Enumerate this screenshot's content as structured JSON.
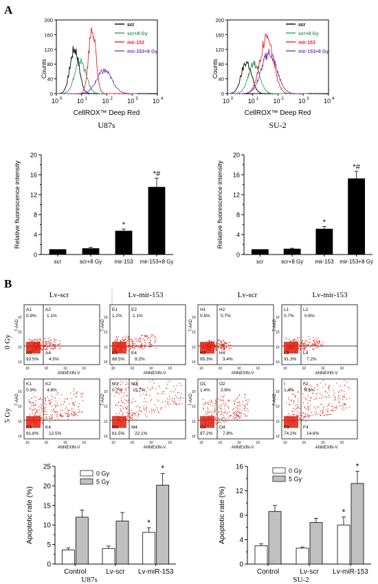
{
  "panel_labels": [
    "A",
    "B"
  ],
  "colors": {
    "black": "#000000",
    "scr8": "#2e9e5a",
    "mir": "#e8202a",
    "mir8": "#7a3fb0",
    "dot": "#e02010",
    "bar_white": "#ffffff",
    "bar_gray": "#c0c0c0"
  },
  "histograms": [
    {
      "cell_line": "U87s",
      "xlabel": "CellROX™ Deep Red",
      "ylabel": "Counts",
      "x_ticks": [
        "10",
        "10",
        "10",
        "10",
        "10"
      ],
      "x_exps": [
        "0",
        "1",
        "2",
        "3",
        "4"
      ],
      "y_ticks": [
        "0",
        "40",
        "80",
        "120",
        "160",
        "200"
      ],
      "ylim": [
        0,
        200
      ],
      "legend": [
        "scr",
        "scr+8 Gy",
        "mir-153",
        "mir-153+8 Gy"
      ],
      "series": [
        {
          "name": "scr",
          "color": "#000000",
          "peak_log": 0.72,
          "height": 120,
          "width": 0.18
        },
        {
          "name": "scr+8 Gy",
          "color": "#2e9e5a",
          "peak_log": 0.95,
          "height": 88,
          "width": 0.22
        },
        {
          "name": "mir-153",
          "color": "#e8202a",
          "peak_log": 1.42,
          "height": 180,
          "width": 0.14
        },
        {
          "name": "mir-153+8 Gy",
          "color": "#7a3fb0",
          "peak_log": 1.9,
          "height": 62,
          "width": 0.3
        }
      ]
    },
    {
      "cell_line": "SU-2",
      "xlabel": "CellROX™ Deep Red",
      "ylabel": "Counts",
      "x_ticks": [
        "10",
        "10",
        "10",
        "10",
        "10"
      ],
      "x_exps": [
        "0",
        "1",
        "2",
        "3",
        "4"
      ],
      "y_ticks": [
        "0",
        "40",
        "80",
        "120",
        "160",
        "200"
      ],
      "ylim": [
        0,
        200
      ],
      "legend": [
        "scr",
        "scr+8 Gy",
        "mir-153",
        "mir-153+8 Gy"
      ],
      "series": [
        {
          "name": "scr",
          "color": "#000000",
          "peak_log": 0.75,
          "height": 85,
          "width": 0.2
        },
        {
          "name": "scr+8 Gy",
          "color": "#2e9e5a",
          "peak_log": 1.05,
          "height": 80,
          "width": 0.22
        },
        {
          "name": "mir-153",
          "color": "#e8202a",
          "peak_log": 1.55,
          "height": 150,
          "width": 0.26
        },
        {
          "name": "mir-153+8 Gy",
          "color": "#7a3fb0",
          "peak_log": 1.65,
          "height": 110,
          "width": 0.3
        }
      ]
    }
  ],
  "chart_data": [
    {
      "type": "bar",
      "panel": "A",
      "cell_line": "U87s",
      "ylabel": "Relative fluorescence intensity",
      "categories": [
        "scr",
        "scr+8 Gy",
        "mir-153",
        "mir-153+8 Gy"
      ],
      "values": [
        1.0,
        1.2,
        4.7,
        13.5
      ],
      "errors": [
        0,
        0.25,
        0.4,
        1.8
      ],
      "annotations": [
        "",
        "",
        "*",
        "*#"
      ],
      "ylim": [
        0,
        20
      ],
      "y_ticks": [
        "0",
        "4",
        "8",
        "12",
        "16",
        "20"
      ]
    },
    {
      "type": "bar",
      "panel": "A",
      "cell_line": "SU-2",
      "ylabel": "Relative fluorescence intensity",
      "categories": [
        "scr",
        "scr+8 Gy",
        "mir-153",
        "mir-153+8 Gy"
      ],
      "values": [
        1.0,
        1.1,
        5.1,
        15.2
      ],
      "errors": [
        0,
        0.15,
        0.5,
        1.5
      ],
      "annotations": [
        "",
        "",
        "*",
        "*#"
      ],
      "ylim": [
        0,
        20
      ],
      "y_ticks": [
        "0",
        "4",
        "8",
        "12",
        "16",
        "20"
      ]
    },
    {
      "type": "bar",
      "panel": "B",
      "cell_line": "U87s",
      "ylabel": "Apoptotic rate (%)",
      "categories": [
        "Control",
        "Lv-scr",
        "Lv-miR-153"
      ],
      "series": [
        {
          "name": "0 Gy",
          "values": [
            3.6,
            4.0,
            8.1
          ],
          "errors": [
            0.5,
            0.6,
            1.2
          ],
          "annotations": [
            "",
            "",
            "*"
          ]
        },
        {
          "name": "5 Gy",
          "values": [
            12.0,
            11.0,
            20.2
          ],
          "errors": [
            1.8,
            2.2,
            3.0
          ],
          "annotations": [
            "",
            "",
            "*"
          ]
        }
      ],
      "ylim": [
        0,
        25
      ],
      "y_ticks": [
        "0",
        "5",
        "10",
        "15",
        "20",
        "25"
      ],
      "legend_position": "top-left"
    },
    {
      "type": "bar",
      "panel": "B",
      "cell_line": "SU-2",
      "ylabel": "Apoptotic rate (%)",
      "categories": [
        "Control",
        "Lv-scr",
        "Lv-miR-153"
      ],
      "series": [
        {
          "name": "0 Gy",
          "values": [
            3.0,
            2.6,
            6.4
          ],
          "errors": [
            0.3,
            0.2,
            1.3
          ],
          "annotations": [
            "",
            "",
            "*"
          ]
        },
        {
          "name": "5 Gy",
          "values": [
            8.6,
            6.8,
            13.2
          ],
          "errors": [
            1.0,
            0.7,
            2.0
          ],
          "annotations": [
            "",
            "",
            "*"
          ]
        }
      ],
      "ylim": [
        0,
        16
      ],
      "y_ticks": [
        "0",
        "4",
        "8",
        "12",
        "16"
      ],
      "legend_position": "top-left"
    }
  ],
  "flow": {
    "column_headers": [
      "Lv-scr",
      "Lv-mir-153",
      "Lv-scr",
      "Lv-mir-153"
    ],
    "row_labels": [
      "0 Gy",
      "5 Gy"
    ],
    "xlabel": "ANNEXIN-V",
    "ylabel": "7-AAD",
    "tick_base": "10",
    "plots": [
      {
        "q": [
          "A1",
          "A2",
          "A3",
          "A4"
        ],
        "p": [
          "0.9%",
          "1.1%",
          "93.5%",
          "4.5%"
        ],
        "spread": 0.4,
        "up": 0.2
      },
      {
        "q": [
          "E1",
          "E2",
          "E3",
          "E4"
        ],
        "p": [
          "1.2%",
          "1.1%",
          "88.5%",
          "9.2%"
        ],
        "spread": 0.55,
        "up": 0.25
      },
      {
        "q": [
          "H1",
          "H2",
          "H3",
          "H4"
        ],
        "p": [
          "0.6%",
          "0.7%",
          "95.3%",
          "3.4%"
        ],
        "spread": 0.35,
        "up": 0.15
      },
      {
        "q": [
          "L1",
          "L2",
          "L3",
          "L4"
        ],
        "p": [
          "0.7%",
          "0.6%",
          "91.3%",
          "7.2%"
        ],
        "spread": 0.5,
        "up": 0.2
      },
      {
        "q": [
          "K1",
          "K2",
          "K3",
          "K4"
        ],
        "p": [
          "0.9%",
          "4.8%",
          "81.8%",
          "12.5%"
        ],
        "spread": 0.75,
        "up": 0.55
      },
      {
        "q": [
          "M1",
          "M2",
          "M3",
          "M4"
        ],
        "p": [
          "0.7%",
          "15.7%",
          "61.5%",
          "22.1%"
        ],
        "spread": 1.0,
        "up": 0.9
      },
      {
        "q": [
          "O1",
          "O2",
          "O3",
          "O4"
        ],
        "p": [
          "1.4%",
          "3.6%",
          "87.2%",
          "7.8%"
        ],
        "spread": 0.65,
        "up": 0.5
      },
      {
        "q": [
          "I",
          "F2",
          "F3",
          "F4"
        ],
        "p": [
          "1.4%",
          "9.6%",
          "74.2%",
          "14.8%"
        ],
        "spread": 0.9,
        "up": 0.75
      }
    ]
  }
}
